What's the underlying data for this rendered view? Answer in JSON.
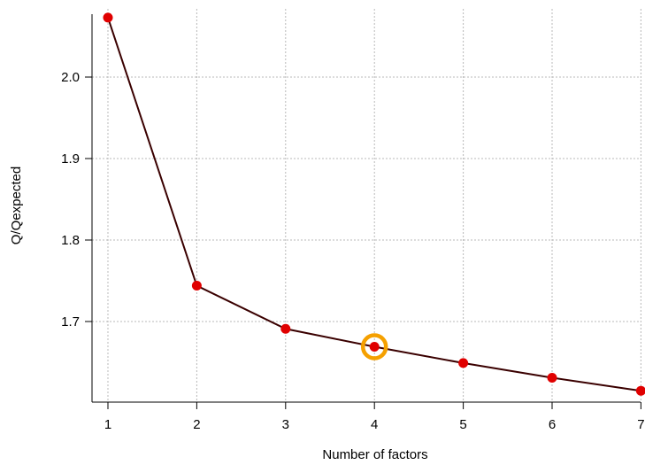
{
  "chart_data": {
    "type": "line",
    "xlabel": "Number of factors",
    "ylabel": "Q/Qexpected",
    "x": [
      1,
      2,
      3,
      4,
      5,
      6,
      7
    ],
    "series": [
      {
        "values": [
          2.073,
          1.744,
          1.691,
          1.669,
          1.649,
          1.631,
          1.615
        ]
      }
    ],
    "xlim": [
      0.8,
      7.0
    ],
    "ylim": [
      1.595,
      2.08
    ],
    "xticks": [
      1,
      2,
      3,
      4,
      5,
      6,
      7
    ],
    "yticks": [
      1.7,
      1.8,
      1.9,
      2.0
    ],
    "ytick_labels": [
      "1.7",
      "1.8",
      "1.9",
      "2.0"
    ],
    "grid": true,
    "highlight": {
      "x": 4,
      "y": 1.669,
      "color": "#f5a000"
    },
    "colors": {
      "line": "#3a0000",
      "marker": "#e00000",
      "grid": "#b8b8b8"
    }
  }
}
